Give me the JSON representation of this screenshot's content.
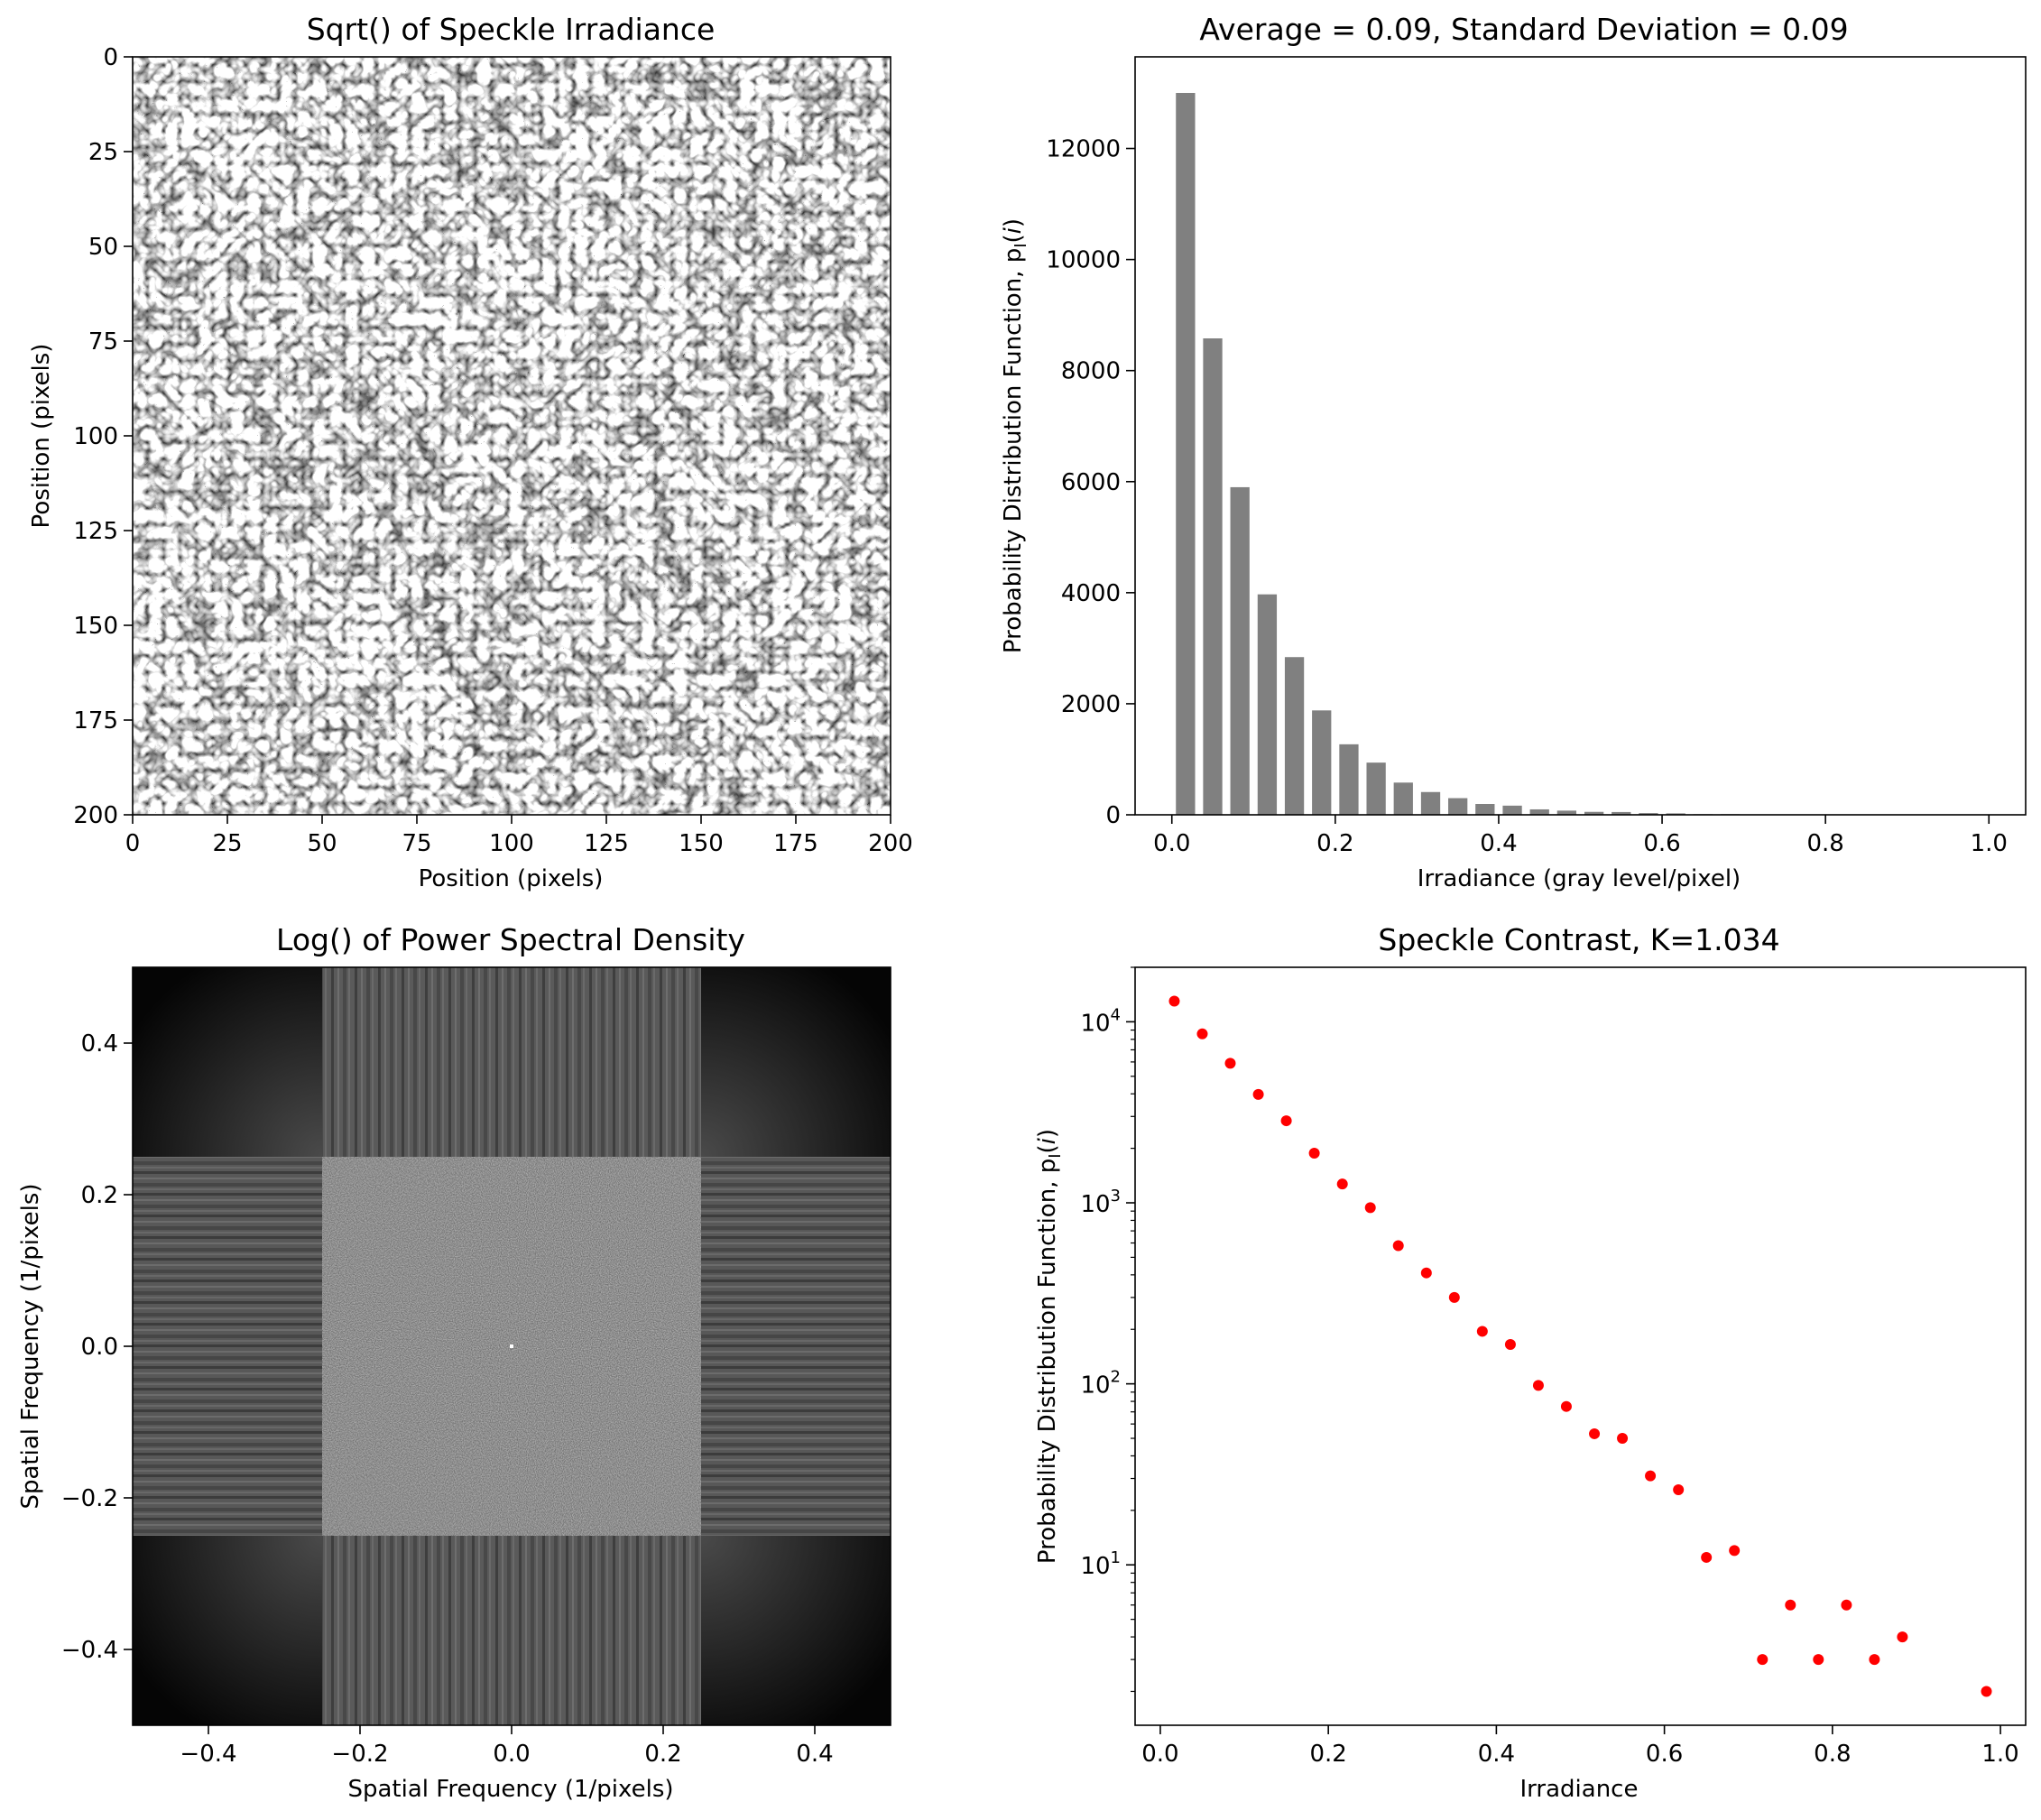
{
  "panels": {
    "speckle": {
      "title": "Sqrt() of Speckle Irradiance",
      "xlabel": "Position (pixels)",
      "ylabel": "Position (pixels)",
      "xticks": [
        "0",
        "25",
        "50",
        "75",
        "100",
        "125",
        "150",
        "175",
        "200"
      ],
      "yticks": [
        "0",
        "25",
        "50",
        "75",
        "100",
        "125",
        "150",
        "175",
        "200"
      ]
    },
    "psd": {
      "title": "Log() of Power Spectral Density",
      "xlabel": "Spatial Frequency (1/pixels)",
      "ylabel": "Spatial Frequency (1/pixels)",
      "xticks": [
        "−0.4",
        "−0.2",
        "0.0",
        "0.2",
        "0.4"
      ],
      "yticks": [
        "0.4",
        "0.2",
        "0.0",
        "−0.2",
        "−0.4"
      ]
    }
  },
  "chart_data": [
    {
      "type": "bar",
      "title": "Average = 0.09, Standard Deviation = 0.09",
      "xlabel": "Irradiance (gray level/pixel)",
      "ylabel": "Probability Distribution Function, p",
      "ylabel_sub": "I",
      "ylabel_arg": "i",
      "xlim": [
        -0.045,
        1.045
      ],
      "ylim": [
        0,
        13650
      ],
      "xticks": [
        "0.0",
        "0.2",
        "0.4",
        "0.6",
        "0.8",
        "1.0"
      ],
      "yticks": [
        "0",
        "2000",
        "4000",
        "6000",
        "8000",
        "10000",
        "12000"
      ],
      "bar_color": "#808080",
      "bar_width": 0.0235,
      "x": [
        0.0167,
        0.05,
        0.0833,
        0.1167,
        0.15,
        0.1833,
        0.2167,
        0.25,
        0.2833,
        0.3167,
        0.35,
        0.3833,
        0.4167,
        0.45,
        0.4833,
        0.5167,
        0.55,
        0.5833,
        0.6167,
        0.65,
        0.6833,
        0.7167,
        0.75,
        0.7833,
        0.8167,
        0.85,
        0.8833,
        0.9167,
        0.95,
        0.9833
      ],
      "values": [
        13000,
        8580,
        5900,
        3970,
        2840,
        1880,
        1270,
        940,
        580,
        410,
        300,
        195,
        165,
        98,
        75,
        53,
        50,
        31,
        26,
        11,
        12,
        3,
        6,
        3,
        6,
        3,
        4,
        0,
        0,
        2
      ]
    },
    {
      "type": "scatter",
      "title": "Speckle Contrast, K=1.034",
      "xlabel": "Irradiance",
      "ylabel": "Probability Distribution Function, p",
      "ylabel_sub": "I",
      "ylabel_arg": "i",
      "yscale": "log",
      "xlim": [
        -0.03,
        1.03
      ],
      "ylim": [
        1.3,
        20000
      ],
      "xticks": [
        "0.0",
        "0.2",
        "0.4",
        "0.6",
        "0.8",
        "1.0"
      ],
      "yticks_base": "10",
      "yticks_exp": [
        "1",
        "2",
        "3",
        "4"
      ],
      "marker_color": "#ff0000",
      "x": [
        0.0167,
        0.05,
        0.0833,
        0.1167,
        0.15,
        0.1833,
        0.2167,
        0.25,
        0.2833,
        0.3167,
        0.35,
        0.3833,
        0.4167,
        0.45,
        0.4833,
        0.5167,
        0.55,
        0.5833,
        0.6167,
        0.65,
        0.6833,
        0.7167,
        0.75,
        0.7833,
        0.8167,
        0.85,
        0.8833,
        0.9833
      ],
      "y": [
        13000,
        8580,
        5900,
        3970,
        2840,
        1880,
        1270,
        940,
        580,
        410,
        300,
        195,
        165,
        98,
        75,
        53,
        50,
        31,
        26,
        11,
        12,
        3,
        6,
        3,
        6,
        3,
        4,
        2
      ]
    }
  ]
}
